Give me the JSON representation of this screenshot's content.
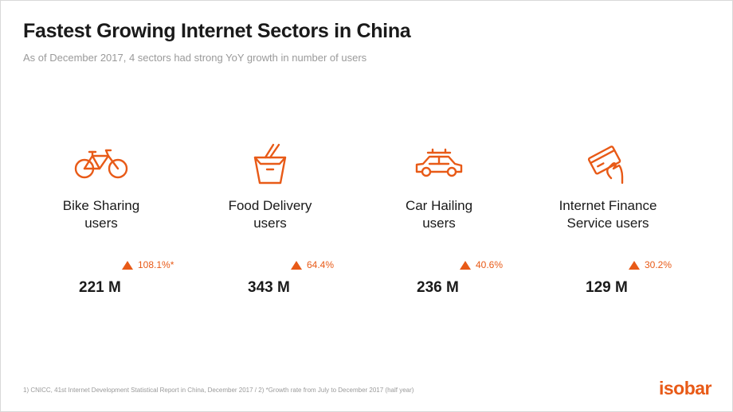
{
  "header": {
    "title": "Fastest Growing Internet Sectors in China",
    "subtitle": "As of December 2017, 4 sectors had strong YoY growth in number of users"
  },
  "accent_color": "#e85a17",
  "sectors": [
    {
      "icon": "bicycle-icon",
      "label_line1": "Bike Sharing",
      "label_line2": "users",
      "growth": "108.1%*",
      "value": "221 M"
    },
    {
      "icon": "takeout-box-icon",
      "label_line1": "Food Delivery",
      "label_line2": "users",
      "growth": "64.4%",
      "value": "343 M"
    },
    {
      "icon": "car-icon",
      "label_line1": "Car Hailing",
      "label_line2": "users",
      "growth": "40.6%",
      "value": "236 M"
    },
    {
      "icon": "credit-card-hand-icon",
      "label_line1": "Internet Finance",
      "label_line2": "Service users",
      "growth": "30.2%",
      "value": "129 M"
    }
  ],
  "footer": {
    "footnote": "1) CNICC, 41st Internet Development Statistical Report in China, December 2017  /  2)  *Growth rate from July to December 2017 (half year)",
    "logo": "isobar"
  }
}
